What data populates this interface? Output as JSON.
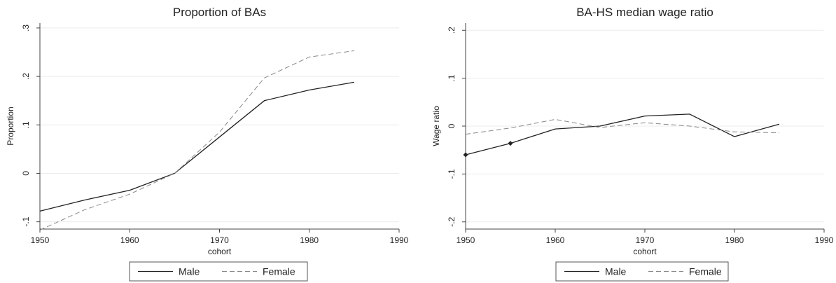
{
  "chart_data": [
    {
      "type": "line",
      "title": "Proportion of BAs",
      "xlabel": "cohort",
      "ylabel": "Proportion",
      "xlim": [
        1950,
        1990
      ],
      "ylim": [
        -0.115,
        0.31
      ],
      "xticks": [
        1950,
        1960,
        1970,
        1980,
        1990
      ],
      "xtick_labels": [
        "1950",
        "1960",
        "1970",
        "1980",
        "1990"
      ],
      "yticks": [
        -0.1,
        0,
        0.1,
        0.2,
        0.3
      ],
      "ytick_labels": [
        "-.1",
        "0",
        ".1",
        ".2",
        ".3"
      ],
      "grid": true,
      "legend_position": "bottom",
      "series": [
        {
          "name": "Male",
          "style": "solid",
          "color": "#222222",
          "x": [
            1950,
            1955,
            1960,
            1965,
            1970,
            1975,
            1980,
            1985
          ],
          "y": [
            -0.078,
            -0.055,
            -0.035,
            0.0,
            0.075,
            0.15,
            0.172,
            0.188
          ],
          "markers": []
        },
        {
          "name": "Female",
          "style": "dashed",
          "color": "#888888",
          "x": [
            1950,
            1955,
            1960,
            1965,
            1970,
            1975,
            1980,
            1985
          ],
          "y": [
            -0.117,
            -0.075,
            -0.043,
            0.0,
            0.085,
            0.197,
            0.24,
            0.253
          ],
          "markers": []
        }
      ]
    },
    {
      "type": "line",
      "title": "BA-HS median wage ratio",
      "xlabel": "cohort",
      "ylabel": "Wage ratio",
      "xlim": [
        1950,
        1990
      ],
      "ylim": [
        -0.215,
        0.215
      ],
      "xticks": [
        1950,
        1960,
        1970,
        1980,
        1990
      ],
      "xtick_labels": [
        "1950",
        "1960",
        "1970",
        "1980",
        "1990"
      ],
      "yticks": [
        -0.2,
        -0.1,
        0,
        0.1,
        0.2
      ],
      "ytick_labels": [
        "-.2",
        "-.1",
        "0",
        ".1",
        ".2"
      ],
      "grid": true,
      "legend_position": "bottom",
      "series": [
        {
          "name": "Male",
          "style": "solid",
          "color": "#222222",
          "x": [
            1950,
            1955,
            1960,
            1965,
            1970,
            1975,
            1980,
            1985
          ],
          "y": [
            -0.06,
            -0.036,
            -0.006,
            0.0,
            0.021,
            0.025,
            -0.022,
            0.004
          ],
          "markers": [
            0,
            1
          ]
        },
        {
          "name": "Female",
          "style": "dashed",
          "color": "#888888",
          "x": [
            1950,
            1955,
            1960,
            1965,
            1970,
            1975,
            1980,
            1985
          ],
          "y": [
            -0.017,
            -0.004,
            0.014,
            -0.003,
            0.007,
            0.0,
            -0.012,
            -0.014
          ],
          "markers": []
        }
      ]
    }
  ]
}
